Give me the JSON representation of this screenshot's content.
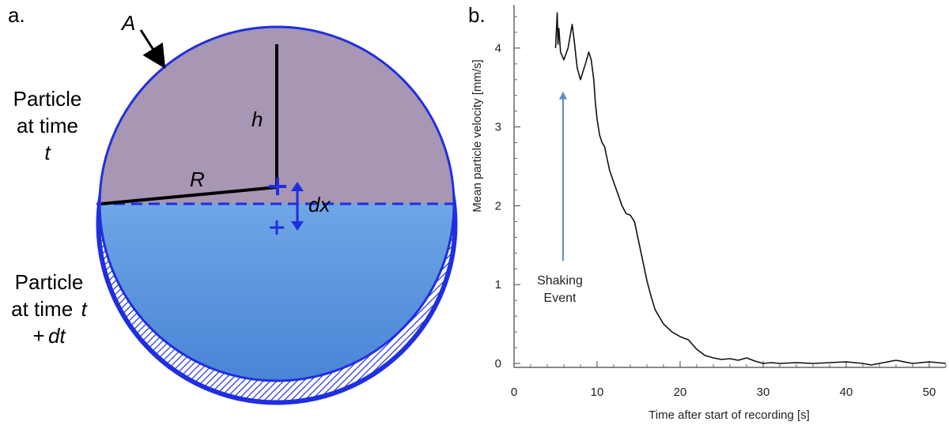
{
  "panel_a": {
    "panel_label": "a.",
    "label_A": "A",
    "label_h": "h",
    "label_R": "R",
    "label_dx": "dx",
    "particle_t": {
      "line1": "Particle",
      "line2": "at time",
      "line3": "t"
    },
    "particle_tdt": {
      "line1": "Particle",
      "line2": "at time",
      "line2_var": "t",
      "line3": "+",
      "line3_var": "dt"
    },
    "colors": {
      "outer_ring": "#1f2fe0",
      "upper_fill": "#a796b4",
      "lower_fill_top": "#6fa6e6",
      "lower_fill_bottom": "#4a84d6",
      "center_mark": "#1f2fe0",
      "dashed_line": "#1f2fe0"
    }
  },
  "panel_b": {
    "panel_label": "b.",
    "annotation": {
      "line1": "Shaking",
      "line2": "Event",
      "arrow_color": "#5b8ec6",
      "x": 5.9
    },
    "chart_data": {
      "type": "line",
      "title": "",
      "xlabel": "Time after start of recording [s]",
      "ylabel": "Mean particle velocity [mm/s]",
      "xlim": [
        0,
        52
      ],
      "ylim": [
        -0.05,
        4.55
      ],
      "xticks": [
        0,
        10,
        20,
        30,
        40,
        50
      ],
      "yticks": [
        0,
        1,
        2,
        3,
        4
      ],
      "grid": false,
      "series": [
        {
          "name": "Mean particle velocity",
          "color": "#111111",
          "x": [
            5.0,
            5.2,
            5.3,
            5.4,
            5.6,
            6.0,
            6.5,
            7.0,
            7.3,
            7.6,
            8.0,
            8.3,
            8.6,
            9.0,
            9.3,
            9.6,
            9.8,
            10.0,
            10.3,
            10.6,
            10.9,
            11.2,
            11.5,
            12.0,
            12.5,
            13.0,
            13.5,
            14.0,
            14.5,
            15.0,
            15.5,
            16.0,
            16.5,
            17.0,
            18.0,
            19.0,
            20.0,
            21.0,
            22.0,
            23.0,
            24.0,
            25.0,
            26.0,
            27.0,
            28.0,
            29.0,
            30.0,
            31.0,
            32.0,
            34.0,
            36.0,
            38.0,
            40.0,
            42.0,
            43.0,
            44.0,
            46.0,
            48.0,
            50.0,
            52.0
          ],
          "values": [
            4.0,
            4.45,
            4.05,
            4.25,
            3.95,
            3.85,
            4.0,
            4.3,
            4.05,
            3.75,
            3.6,
            3.7,
            3.8,
            3.95,
            3.85,
            3.6,
            3.3,
            3.1,
            2.9,
            2.8,
            2.75,
            2.6,
            2.45,
            2.3,
            2.15,
            2.0,
            1.9,
            1.88,
            1.8,
            1.55,
            1.3,
            1.05,
            0.85,
            0.68,
            0.5,
            0.4,
            0.34,
            0.3,
            0.18,
            0.1,
            0.07,
            0.05,
            0.06,
            0.04,
            0.07,
            0.03,
            0.0,
            0.01,
            0.0,
            0.01,
            0.0,
            0.01,
            0.02,
            0.0,
            -0.02,
            0.0,
            0.04,
            0.0,
            0.02,
            0.0
          ]
        }
      ]
    }
  }
}
